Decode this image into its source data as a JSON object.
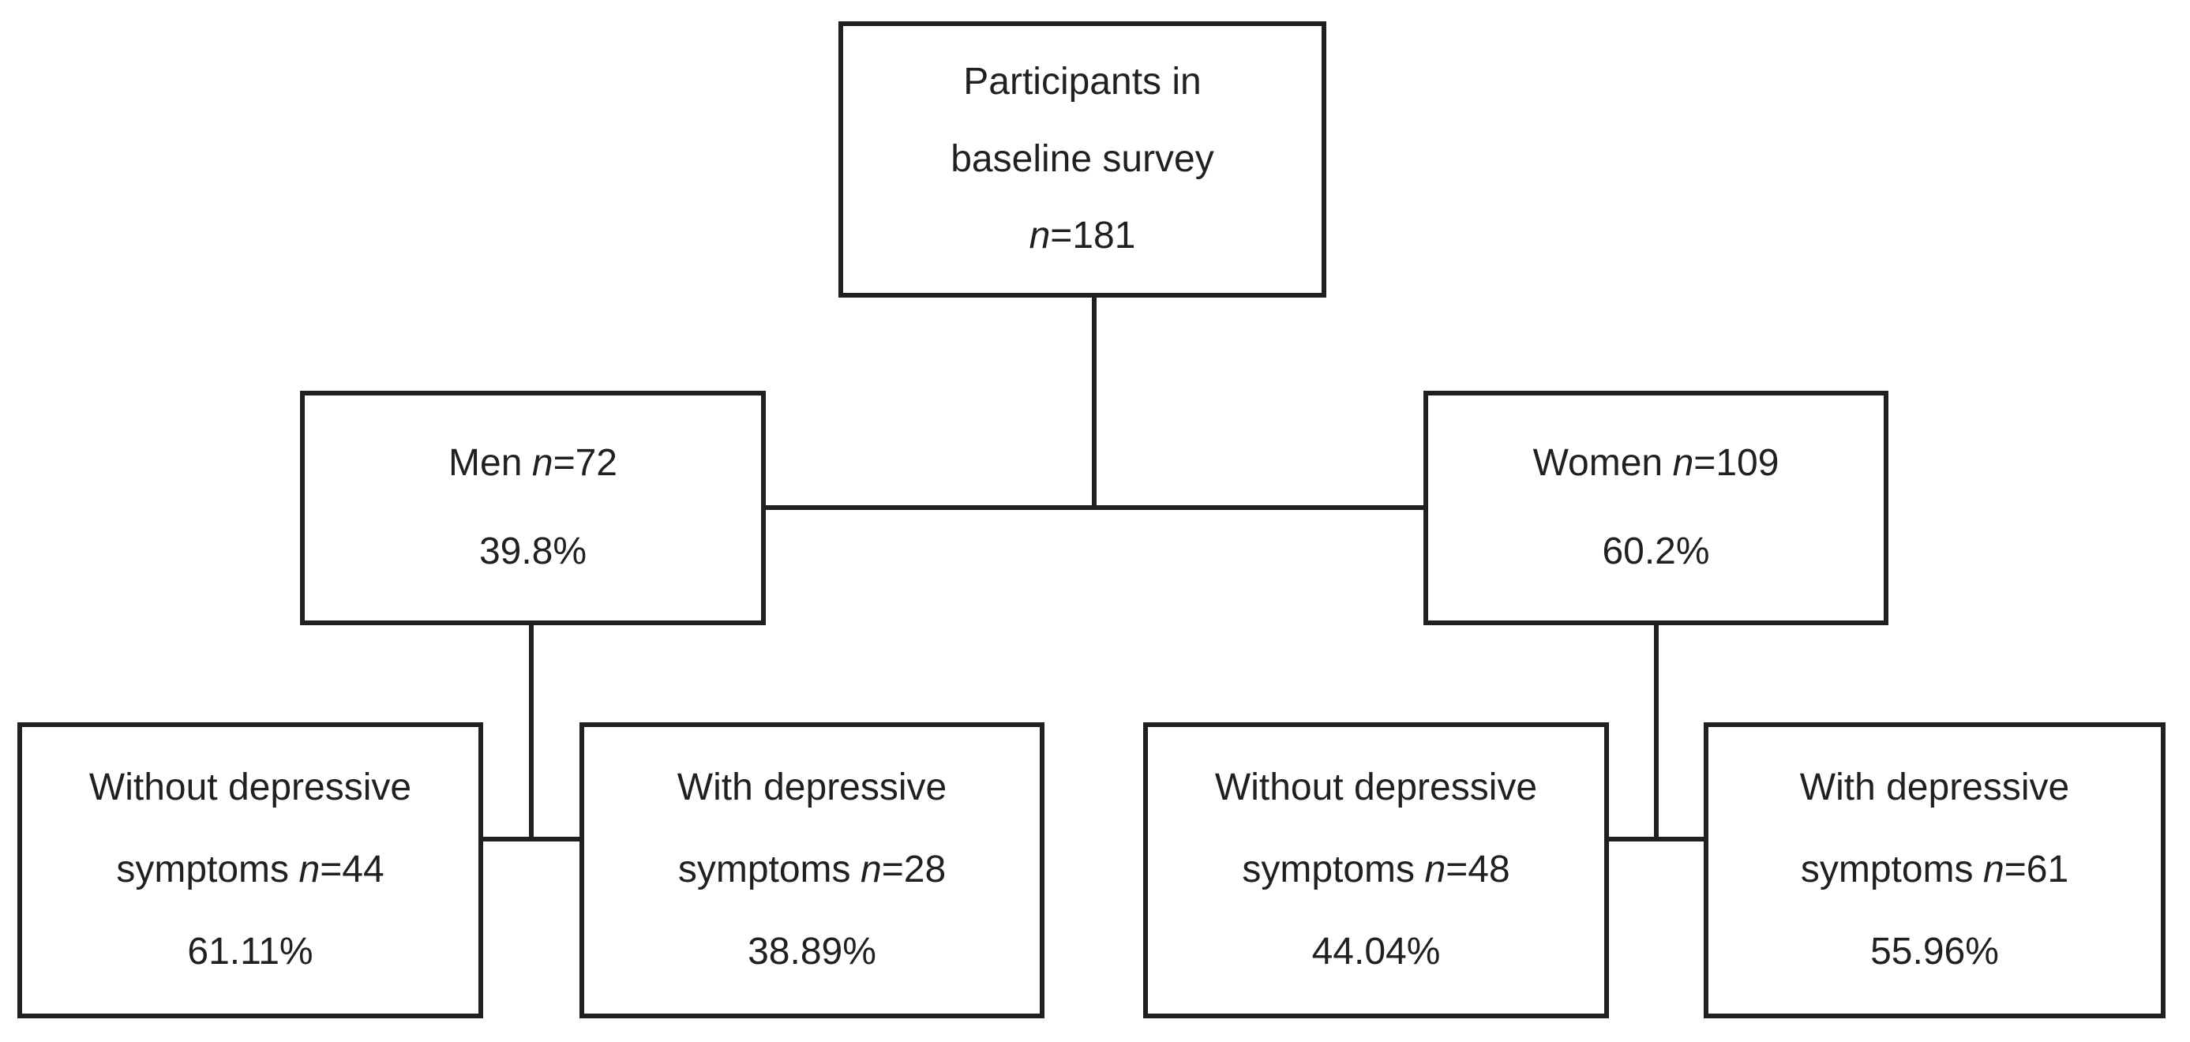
{
  "diagram": {
    "type": "flowchart",
    "colors": {
      "background": "#ffffff",
      "line": "#231f20",
      "text": "#231f20"
    },
    "nodes": {
      "root": {
        "line1": "Participants in",
        "line2": "baseline survey",
        "n_char": "n",
        "n_value": "=181"
      },
      "men": {
        "label": "Men",
        "n_char": "n",
        "n_value": "=72",
        "percent": "39.8%"
      },
      "women": {
        "label": "Women",
        "n_char": "n",
        "n_value": "=109",
        "percent": "60.2%"
      },
      "men_without": {
        "line1": "Without depressive",
        "line2_prefix": "symptoms",
        "n_char": "n",
        "n_value": "=44",
        "percent": "61.11%"
      },
      "men_with": {
        "line1": "With depressive",
        "line2_prefix": "symptoms",
        "n_char": "n",
        "n_value": "=28",
        "percent": "38.89%"
      },
      "women_without": {
        "line1": "Without depressive",
        "line2_prefix": "symptoms",
        "n_char": "n",
        "n_value": "=48",
        "percent": "44.04%"
      },
      "women_with": {
        "line1": "With depressive",
        "line2_prefix": "symptoms",
        "n_char": "n",
        "n_value": "=61",
        "percent": "55.96%"
      }
    }
  }
}
